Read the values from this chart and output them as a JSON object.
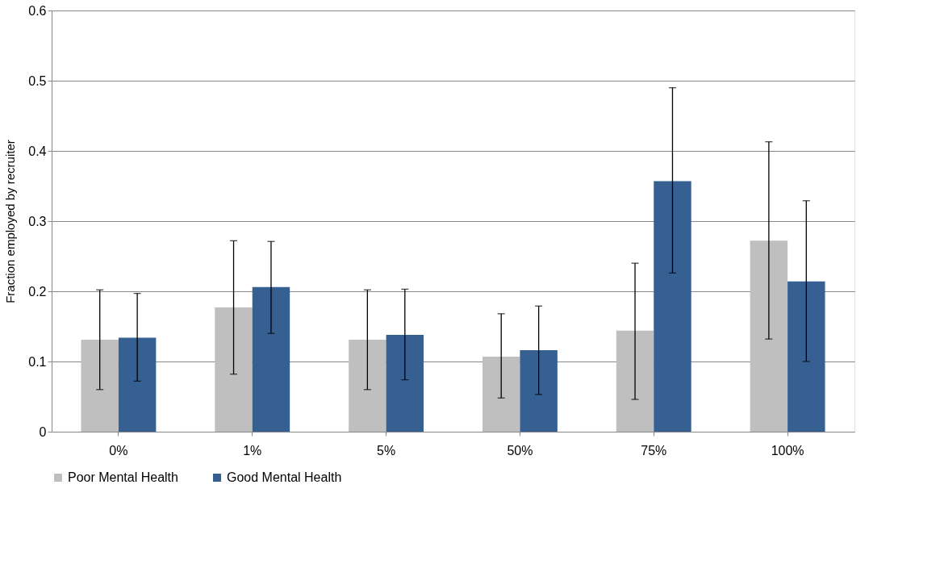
{
  "chart_data": {
    "type": "bar",
    "ylabel": "Fraction employed by recruiter",
    "categories": [
      "0%",
      "1%",
      "5%",
      "50%",
      "75%",
      "100%"
    ],
    "series": [
      {
        "name": "Poor Mental Health",
        "color": "#bfbfbf",
        "values": [
          0.131,
          0.177,
          0.131,
          0.107,
          0.144,
          0.272
        ],
        "errors": [
          [
            0.06,
            0.202
          ],
          [
            0.082,
            0.272
          ],
          [
            0.06,
            0.202
          ],
          [
            0.048,
            0.168
          ],
          [
            0.046,
            0.24
          ],
          [
            0.132,
            0.413
          ]
        ]
      },
      {
        "name": "Good Mental Health",
        "color": "#376092",
        "values": [
          0.134,
          0.206,
          0.138,
          0.116,
          0.357,
          0.214
        ],
        "errors": [
          [
            0.072,
            0.197
          ],
          [
            0.14,
            0.271
          ],
          [
            0.074,
            0.203
          ],
          [
            0.053,
            0.179
          ],
          [
            0.226,
            0.49
          ],
          [
            0.1,
            0.329
          ]
        ]
      }
    ],
    "ylim": [
      0,
      0.6
    ],
    "yticks": [
      0,
      0.1,
      0.2,
      0.3,
      0.4,
      0.5,
      0.6
    ],
    "grid": "y",
    "legend": "bottom"
  }
}
